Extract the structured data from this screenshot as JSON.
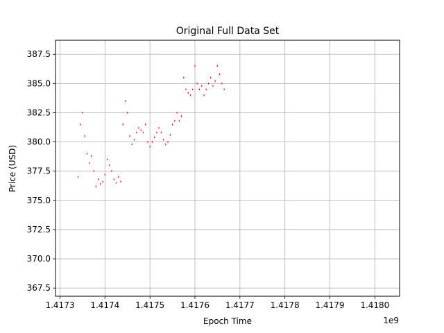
{
  "chart_data": {
    "type": "scatter",
    "title": "Original Full Data Set",
    "xlabel": "Epoch Time",
    "ylabel": "Price (USD)",
    "x_offset_label": "1e9",
    "xlim": [
      1.41729,
      1.418055
    ],
    "ylim": [
      366.8,
      388.7
    ],
    "grid": true,
    "colors": {
      "series": "#ff0000",
      "grid": "#b0b0b0",
      "axes": "#000000"
    },
    "x_ticks": [
      {
        "value": 1.4173,
        "label": "1.4173"
      },
      {
        "value": 1.4174,
        "label": "1.4174"
      },
      {
        "value": 1.4175,
        "label": "1.4175"
      },
      {
        "value": 1.4176,
        "label": "1.4176"
      },
      {
        "value": 1.4177,
        "label": "1.4177"
      },
      {
        "value": 1.4178,
        "label": "1.4178"
      },
      {
        "value": 1.4179,
        "label": "1.4179"
      },
      {
        "value": 1.418,
        "label": "1.4180"
      }
    ],
    "y_ticks": [
      {
        "value": 367.5,
        "label": "367.5"
      },
      {
        "value": 370.0,
        "label": "370.0"
      },
      {
        "value": 372.5,
        "label": "372.5"
      },
      {
        "value": 375.0,
        "label": "375.0"
      },
      {
        "value": 377.5,
        "label": "377.5"
      },
      {
        "value": 380.0,
        "label": "380.0"
      },
      {
        "value": 382.5,
        "label": "382.5"
      },
      {
        "value": 385.0,
        "label": "385.0"
      },
      {
        "value": 387.5,
        "label": "387.5"
      }
    ],
    "series": [
      {
        "color": "#ff0000",
        "points": [
          [
            1.41734,
            377.0
          ],
          [
            1.417345,
            381.5
          ],
          [
            1.41735,
            382.5
          ],
          [
            1.417355,
            380.5
          ],
          [
            1.41736,
            379.0
          ],
          [
            1.417365,
            378.2
          ],
          [
            1.41737,
            378.8
          ],
          [
            1.417375,
            377.5
          ],
          [
            1.41738,
            376.2
          ],
          [
            1.417385,
            376.8
          ],
          [
            1.41739,
            376.4
          ],
          [
            1.417395,
            376.6
          ],
          [
            1.4174,
            377.2
          ],
          [
            1.417405,
            378.5
          ],
          [
            1.41741,
            378.0
          ],
          [
            1.417415,
            377.5
          ],
          [
            1.41742,
            376.8
          ],
          [
            1.417425,
            376.5
          ],
          [
            1.41743,
            377.0
          ],
          [
            1.417435,
            376.6
          ],
          [
            1.41744,
            381.5
          ],
          [
            1.417445,
            383.5
          ],
          [
            1.41745,
            382.5
          ],
          [
            1.417455,
            380.5
          ],
          [
            1.41746,
            379.8
          ],
          [
            1.417465,
            380.2
          ],
          [
            1.41747,
            380.8
          ],
          [
            1.417475,
            381.2
          ],
          [
            1.41748,
            381.0
          ],
          [
            1.417485,
            380.8
          ],
          [
            1.41749,
            381.5
          ],
          [
            1.417495,
            380.0
          ],
          [
            1.4175,
            379.6
          ],
          [
            1.417505,
            380.0
          ],
          [
            1.41751,
            380.4
          ],
          [
            1.417515,
            380.8
          ],
          [
            1.41752,
            381.2
          ],
          [
            1.417525,
            380.8
          ],
          [
            1.41753,
            380.2
          ],
          [
            1.417535,
            379.8
          ],
          [
            1.41754,
            380.0
          ],
          [
            1.417545,
            380.6
          ],
          [
            1.41755,
            381.5
          ],
          [
            1.417555,
            381.8
          ],
          [
            1.41756,
            382.5
          ],
          [
            1.417565,
            381.8
          ],
          [
            1.41757,
            382.2
          ],
          [
            1.417575,
            385.5
          ],
          [
            1.41758,
            384.5
          ],
          [
            1.417585,
            384.2
          ],
          [
            1.41759,
            384.0
          ],
          [
            1.417595,
            384.5
          ],
          [
            1.4176,
            386.5
          ],
          [
            1.417605,
            385.0
          ],
          [
            1.41761,
            384.5
          ],
          [
            1.417615,
            384.8
          ],
          [
            1.41762,
            384.0
          ],
          [
            1.417625,
            384.5
          ],
          [
            1.41763,
            385.0
          ],
          [
            1.417635,
            385.5
          ],
          [
            1.41764,
            384.8
          ],
          [
            1.417645,
            385.2
          ],
          [
            1.41765,
            386.5
          ],
          [
            1.417655,
            385.8
          ],
          [
            1.41766,
            385.0
          ],
          [
            1.417665,
            384.5
          ]
        ]
      }
    ]
  }
}
